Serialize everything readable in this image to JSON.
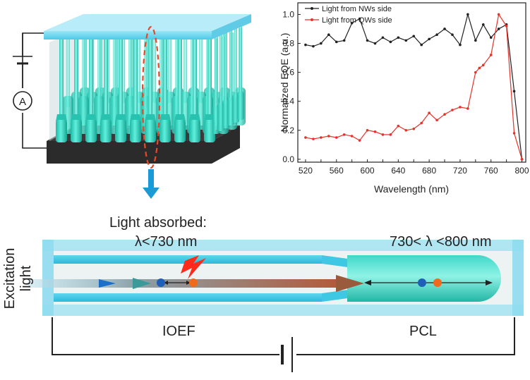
{
  "device": {
    "ammeter_symbol": "A"
  },
  "chart_data": {
    "type": "line",
    "xlabel": "Wavelength (nm)",
    "ylabel": "Normalized EQE (a.u.)",
    "xlim": [
      510,
      805
    ],
    "ylim": [
      -0.02,
      1.08
    ],
    "xticks": [
      520,
      540,
      560,
      580,
      600,
      620,
      640,
      660,
      680,
      700,
      720,
      740,
      760,
      780,
      800
    ],
    "yticks": [
      0.0,
      0.2,
      0.4,
      0.6,
      0.8,
      1.0
    ],
    "ytick_labels": [
      "0.0",
      "0.2",
      "0.4",
      "0.6",
      "0.8",
      "1.0"
    ],
    "legend_position": "top-left",
    "series": [
      {
        "name": "Light from NWs side",
        "color": "#222222",
        "x": [
          520,
          530,
          540,
          550,
          560,
          570,
          580,
          590,
          600,
          610,
          620,
          630,
          640,
          650,
          660,
          670,
          680,
          690,
          700,
          710,
          720,
          730,
          740,
          750,
          760,
          770,
          780,
          790,
          800
        ],
        "y": [
          0.79,
          0.78,
          0.8,
          0.86,
          0.81,
          0.82,
          0.94,
          0.97,
          0.82,
          0.8,
          0.84,
          0.81,
          0.84,
          0.82,
          0.85,
          0.79,
          0.83,
          0.86,
          0.9,
          0.86,
          0.79,
          1.0,
          0.82,
          0.93,
          0.84,
          0.9,
          0.93,
          0.47,
          0.0
        ]
      },
      {
        "name": "Light from QWs side",
        "color": "#e8312a",
        "x": [
          520,
          530,
          540,
          550,
          560,
          570,
          580,
          590,
          600,
          610,
          620,
          630,
          640,
          650,
          660,
          670,
          680,
          690,
          700,
          710,
          720,
          730,
          740,
          745,
          750,
          760,
          770,
          780,
          790,
          800
        ],
        "y": [
          0.15,
          0.14,
          0.15,
          0.16,
          0.15,
          0.17,
          0.16,
          0.13,
          0.2,
          0.19,
          0.17,
          0.17,
          0.23,
          0.2,
          0.21,
          0.25,
          0.32,
          0.27,
          0.31,
          0.34,
          0.36,
          0.35,
          0.6,
          0.63,
          0.65,
          0.72,
          1.0,
          0.92,
          0.18,
          0.0
        ]
      }
    ]
  },
  "labels": {
    "light_absorbed": "Light absorbed:",
    "lambda_short": "λ<730 nm",
    "lambda_long": "730< λ <800 nm",
    "excitation_line1": "Excitation",
    "excitation_line2": "light",
    "ioef": "IOEF",
    "pcl": "PCL"
  },
  "colors": {
    "teal": "#2fd4c0",
    "cyan_glass": "#7fe0f2",
    "arrow_blue": "#1a9ad6",
    "dash_red": "#e8472a",
    "electron_blue": "#1f5fb8",
    "hole_orange": "#f06a1a",
    "lightning_red": "#ff2a1a"
  }
}
